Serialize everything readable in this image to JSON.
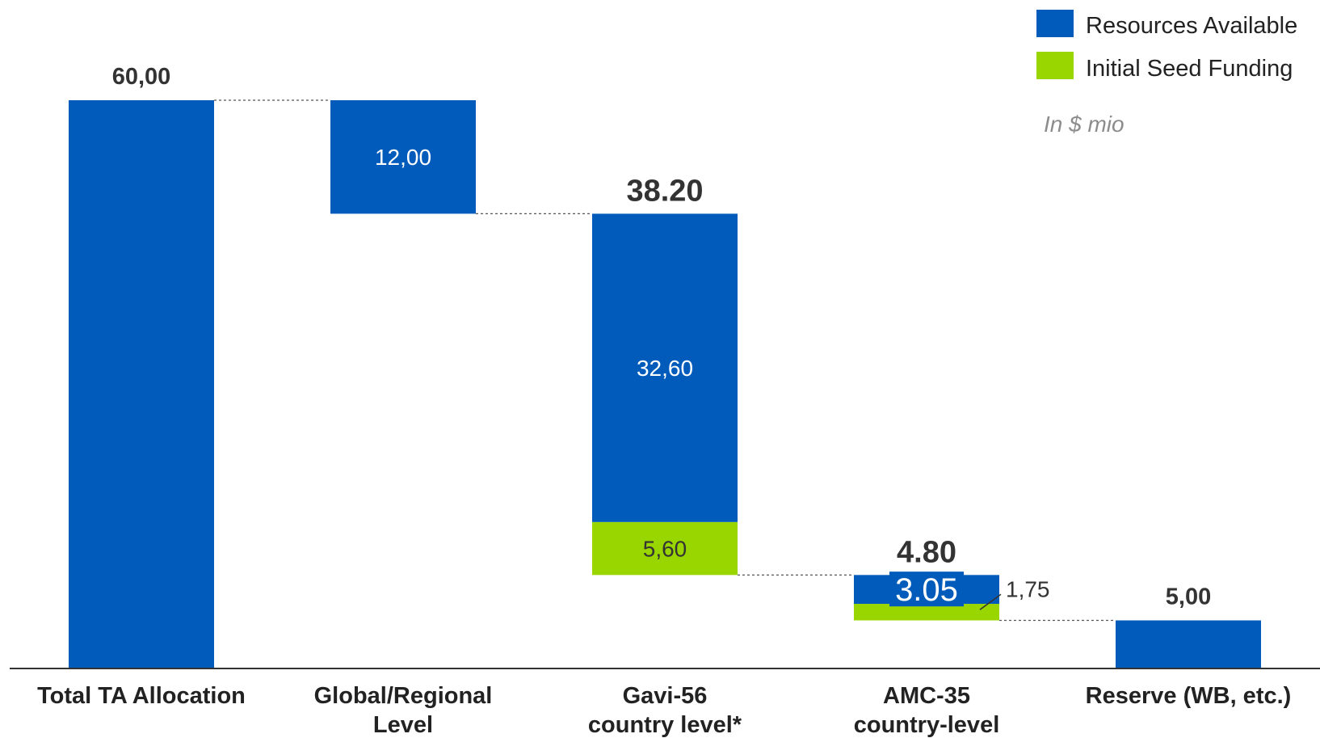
{
  "chart_data": {
    "type": "bar",
    "subtype": "waterfall",
    "unit_note": "In $ mio",
    "colors": {
      "resources_available": "#005bbb",
      "initial_seed_funding": "#99d600",
      "axis": "#333333",
      "connector": "#555555"
    },
    "legend": {
      "placement": "top-right",
      "items": [
        {
          "key": "resources_available",
          "label": "Resources Available"
        },
        {
          "key": "initial_seed_funding",
          "label": "Initial Seed Funding"
        }
      ]
    },
    "y_range": [
      0,
      60
    ],
    "categories": [
      {
        "label_lines": [
          "Total TA Allocation"
        ],
        "base": 0,
        "top": 60,
        "segments": [
          {
            "series": "resources_available",
            "from": 0,
            "to": 60,
            "label": ""
          }
        ],
        "total_label": "60,00"
      },
      {
        "label_lines": [
          "Global/Regional",
          "Level"
        ],
        "base": 48,
        "top": 60,
        "segments": [
          {
            "series": "resources_available",
            "from": 48,
            "to": 60,
            "label": "12,00"
          }
        ],
        "total_label": ""
      },
      {
        "label_lines": [
          "Gavi-56",
          "country level*"
        ],
        "base": 9.8,
        "top": 48,
        "segments": [
          {
            "series": "initial_seed_funding",
            "from": 9.8,
            "to": 15.4,
            "label": "5,60"
          },
          {
            "series": "resources_available",
            "from": 15.4,
            "to": 48,
            "label": "32,60"
          }
        ],
        "total_label": "38.20"
      },
      {
        "label_lines": [
          "AMC-35",
          "country-level"
        ],
        "base": 5,
        "top": 9.8,
        "segments": [
          {
            "series": "initial_seed_funding",
            "from": 5,
            "to": 6.75,
            "label": "1,75"
          },
          {
            "series": "resources_available",
            "from": 6.75,
            "to": 9.8,
            "label": "3.05"
          }
        ],
        "total_label": "4.80"
      },
      {
        "label_lines": [
          "Reserve (WB, etc.)"
        ],
        "base": 0,
        "top": 5,
        "segments": [
          {
            "series": "resources_available",
            "from": 0,
            "to": 5,
            "label": ""
          }
        ],
        "total_label": "5,00"
      }
    ]
  }
}
